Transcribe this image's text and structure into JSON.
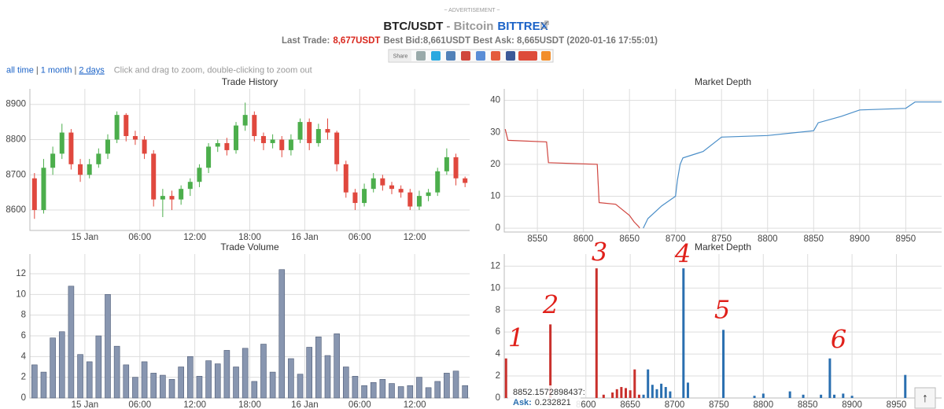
{
  "header": {
    "advertisement": "~ ADVERTISEMENT ~",
    "pair": "BTC/USDT",
    "separator": "- Bitcoin",
    "exchange": "BITTREX",
    "last_trade_label": "Last Trade:",
    "last_trade": "8,677USDT",
    "quote_rest": "Best Bid:8,661USDT Best Ask: 8,665USDT (2020-01-16 17:55:01)",
    "share": "Share"
  },
  "nav": {
    "links": [
      "all time",
      "1 month",
      "2 days"
    ],
    "separator": "|",
    "hint": "Click and drag to zoom, double-clicking to zoom out"
  },
  "scroll_top": "↑",
  "chart_data": [
    {
      "type": "candlestick",
      "title": "Trade History",
      "x": [
        "14 Jan 18:30",
        "14 Jan 19:30",
        "14 Jan 20:30",
        "14 Jan 21:30",
        "14 Jan 22:30",
        "14 Jan 23:30",
        "15 Jan 00:30",
        "15 Jan 01:30",
        "15 Jan 02:30",
        "15 Jan 03:30",
        "15 Jan 04:30",
        "15 Jan 05:30",
        "15 Jan 06:30",
        "15 Jan 07:30",
        "15 Jan 08:30",
        "15 Jan 09:30",
        "15 Jan 10:30",
        "15 Jan 11:30",
        "15 Jan 12:30",
        "15 Jan 13:30",
        "15 Jan 14:30",
        "15 Jan 15:30",
        "15 Jan 16:30",
        "15 Jan 17:30",
        "15 Jan 18:30",
        "15 Jan 19:30",
        "15 Jan 20:30",
        "15 Jan 21:30",
        "15 Jan 22:30",
        "15 Jan 23:30",
        "16 Jan 00:30",
        "16 Jan 01:30",
        "16 Jan 02:30",
        "16 Jan 03:30",
        "16 Jan 04:30",
        "16 Jan 05:30",
        "16 Jan 06:30",
        "16 Jan 07:30",
        "16 Jan 08:30",
        "16 Jan 09:30",
        "16 Jan 10:30",
        "16 Jan 11:30",
        "16 Jan 12:30",
        "16 Jan 13:30",
        "16 Jan 14:30",
        "16 Jan 15:30",
        "16 Jan 16:30",
        "16 Jan 17:30"
      ],
      "open": [
        8690,
        8600,
        8720,
        8760,
        8820,
        8730,
        8700,
        8730,
        8760,
        8800,
        8870,
        8810,
        8800,
        8760,
        8630,
        8640,
        8630,
        8660,
        8680,
        8720,
        8780,
        8790,
        8770,
        8840,
        8870,
        8810,
        8790,
        8800,
        8770,
        8800,
        8850,
        8790,
        8830,
        8820,
        8730,
        8650,
        8620,
        8660,
        8690,
        8670,
        8660,
        8650,
        8610,
        8640,
        8650,
        8710,
        8750,
        8690
      ],
      "high": [
        8705,
        8745,
        8780,
        8845,
        8830,
        8745,
        8745,
        8775,
        8815,
        8880,
        8875,
        8825,
        8810,
        8770,
        8660,
        8655,
        8670,
        8690,
        8730,
        8790,
        8800,
        8805,
        8850,
        8905,
        8880,
        8820,
        8815,
        8810,
        8815,
        8860,
        8860,
        8845,
        8860,
        8825,
        8740,
        8660,
        8675,
        8705,
        8700,
        8680,
        8670,
        8660,
        8655,
        8660,
        8720,
        8775,
        8760,
        8695
      ],
      "low": [
        8575,
        8590,
        8700,
        8745,
        8715,
        8680,
        8690,
        8720,
        8745,
        8790,
        8795,
        8785,
        8745,
        8610,
        8580,
        8600,
        8615,
        8640,
        8665,
        8705,
        8765,
        8755,
        8760,
        8825,
        8795,
        8770,
        8775,
        8750,
        8755,
        8790,
        8770,
        8780,
        8800,
        8710,
        8635,
        8600,
        8610,
        8650,
        8655,
        8645,
        8635,
        8600,
        8600,
        8625,
        8640,
        8700,
        8670,
        8665
      ],
      "close": [
        8600,
        8720,
        8760,
        8820,
        8730,
        8700,
        8730,
        8760,
        8800,
        8870,
        8810,
        8800,
        8760,
        8630,
        8640,
        8630,
        8660,
        8680,
        8720,
        8780,
        8790,
        8770,
        8840,
        8870,
        8810,
        8790,
        8800,
        8770,
        8800,
        8850,
        8790,
        8830,
        8820,
        8730,
        8650,
        8620,
        8660,
        8690,
        8670,
        8660,
        8650,
        8610,
        8640,
        8650,
        8710,
        8750,
        8690,
        8677
      ],
      "up_color": "#4cae4c",
      "down_color": "#e0483e",
      "xlim": [
        "14 Jan 18:00",
        "16 Jan 18:00"
      ],
      "xticks": [
        {
          "value": "15 Jan 00:00",
          "label": "15 Jan"
        },
        {
          "value": "15 Jan 06:00",
          "label": "06:00"
        },
        {
          "value": "15 Jan 12:00",
          "label": "12:00"
        },
        {
          "value": "15 Jan 18:00",
          "label": "18:00"
        },
        {
          "value": "16 Jan 00:00",
          "label": "16 Jan"
        },
        {
          "value": "16 Jan 06:00",
          "label": "06:00"
        },
        {
          "value": "16 Jan 12:00",
          "label": "12:00"
        }
      ],
      "ylim": [
        8542,
        8944
      ],
      "yticks": [
        8600,
        8700,
        8800,
        8900
      ],
      "grid": true
    },
    {
      "type": "bar",
      "title": "Trade Volume",
      "x": [
        "14 Jan 18:30",
        "14 Jan 19:30",
        "14 Jan 20:30",
        "14 Jan 21:30",
        "14 Jan 22:30",
        "14 Jan 23:30",
        "15 Jan 00:30",
        "15 Jan 01:30",
        "15 Jan 02:30",
        "15 Jan 03:30",
        "15 Jan 04:30",
        "15 Jan 05:30",
        "15 Jan 06:30",
        "15 Jan 07:30",
        "15 Jan 08:30",
        "15 Jan 09:30",
        "15 Jan 10:30",
        "15 Jan 11:30",
        "15 Jan 12:30",
        "15 Jan 13:30",
        "15 Jan 14:30",
        "15 Jan 15:30",
        "15 Jan 16:30",
        "15 Jan 17:30",
        "15 Jan 18:30",
        "15 Jan 19:30",
        "15 Jan 20:30",
        "15 Jan 21:30",
        "15 Jan 22:30",
        "15 Jan 23:30",
        "16 Jan 00:30",
        "16 Jan 01:30",
        "16 Jan 02:30",
        "16 Jan 03:30",
        "16 Jan 04:30",
        "16 Jan 05:30",
        "16 Jan 06:30",
        "16 Jan 07:30",
        "16 Jan 08:30",
        "16 Jan 09:30",
        "16 Jan 10:30",
        "16 Jan 11:30",
        "16 Jan 12:30",
        "16 Jan 13:30",
        "16 Jan 14:30",
        "16 Jan 15:30",
        "16 Jan 16:30",
        "16 Jan 17:30"
      ],
      "values": [
        3.2,
        2.5,
        5.8,
        6.4,
        10.8,
        4.2,
        3.5,
        6.0,
        10.0,
        5.0,
        3.2,
        2.0,
        3.5,
        2.4,
        2.2,
        1.8,
        3.0,
        4.0,
        2.1,
        3.6,
        3.3,
        4.6,
        3.0,
        4.8,
        1.6,
        5.2,
        2.5,
        12.4,
        3.8,
        2.3,
        4.9,
        5.9,
        4.1,
        6.2,
        3.0,
        2.1,
        1.2,
        1.5,
        1.8,
        1.4,
        1.1,
        1.2,
        2.0,
        1.0,
        1.6,
        2.4,
        2.6,
        1.2
      ],
      "color": "#8896b0",
      "xlim": [
        "14 Jan 18:00",
        "16 Jan 18:00"
      ],
      "xticks": [
        {
          "value": "15 Jan 00:00",
          "label": "15 Jan"
        },
        {
          "value": "15 Jan 06:00",
          "label": "06:00"
        },
        {
          "value": "15 Jan 12:00",
          "label": "12:00"
        },
        {
          "value": "15 Jan 18:00",
          "label": "18:00"
        },
        {
          "value": "16 Jan 00:00",
          "label": "16 Jan"
        },
        {
          "value": "16 Jan 06:00",
          "label": "06:00"
        },
        {
          "value": "16 Jan 12:00",
          "label": "12:00"
        }
      ],
      "ylim": [
        0,
        13.9
      ],
      "yticks": [
        0,
        2,
        4,
        6,
        8,
        10,
        12
      ],
      "grid": true
    },
    {
      "type": "line",
      "title": "Market Depth",
      "series": [
        {
          "color": "#d0453f",
          "x": [
            8515,
            8518,
            8560,
            8562,
            8615,
            8617,
            8635,
            8650,
            8655,
            8660,
            8661
          ],
          "values": [
            31,
            27.5,
            27,
            20.5,
            20,
            8,
            7.5,
            4,
            2,
            0.5,
            0
          ]
        },
        {
          "color": "#4a8ec8",
          "x": [
            8665,
            8670,
            8685,
            8700,
            8702,
            8705,
            8708,
            8730,
            8750,
            8800,
            8850,
            8855,
            8880,
            8900,
            8950,
            8960,
            8989
          ],
          "values": [
            0,
            3,
            7,
            10,
            15,
            20,
            22,
            24,
            28.5,
            29,
            30.5,
            33,
            35,
            37,
            37.5,
            39.5,
            39.5
          ]
        }
      ],
      "xlim": [
        8514,
        8989
      ],
      "xticks": [
        8550,
        8600,
        8650,
        8700,
        8750,
        8800,
        8850,
        8900,
        8950
      ],
      "ylim": [
        -1.2,
        43.6
      ],
      "yticks": [
        0,
        10,
        20,
        30,
        40
      ],
      "grid": true
    },
    {
      "type": "bar",
      "title": "Market Depth",
      "series": [
        {
          "color": "#c9302c",
          "x": [
            8510,
            8560,
            8612,
            8620,
            8630,
            8635,
            8640,
            8645,
            8650,
            8655,
            8660
          ],
          "values": [
            3.6,
            6.7,
            11.8,
            0.3,
            0.5,
            0.8,
            1,
            0.9,
            0.7,
            2.6,
            0.3
          ]
        },
        {
          "color": "#2a6fb0",
          "x": [
            8665,
            8670,
            8675,
            8680,
            8685,
            8690,
            8695,
            8710,
            8715,
            8755,
            8790,
            8800,
            8830,
            8845,
            8865,
            8875,
            8880,
            8890,
            8900,
            8960
          ],
          "values": [
            0.3,
            2.6,
            1.2,
            0.8,
            1.3,
            1,
            0.6,
            11.8,
            1.4,
            6.2,
            0.2,
            0.4,
            0.6,
            0.3,
            0.3,
            3.6,
            0.3,
            0.4,
            0.2,
            2.1
          ]
        }
      ],
      "xlim": [
        8508,
        9001
      ],
      "xticks": [
        8600,
        8650,
        8700,
        8750,
        8800,
        8850,
        8900,
        8950
      ],
      "ylim": [
        0,
        13.1
      ],
      "yticks": [
        0,
        2,
        4,
        6,
        8,
        10,
        12
      ],
      "grid": true,
      "tooltip": {
        "price": "8852.1572898437:",
        "label": "Ask:",
        "value": "0.232821"
      },
      "annotations": [
        "1",
        "2",
        "3",
        "4",
        "5",
        "6"
      ],
      "annotation_color": "#e0201a"
    }
  ]
}
